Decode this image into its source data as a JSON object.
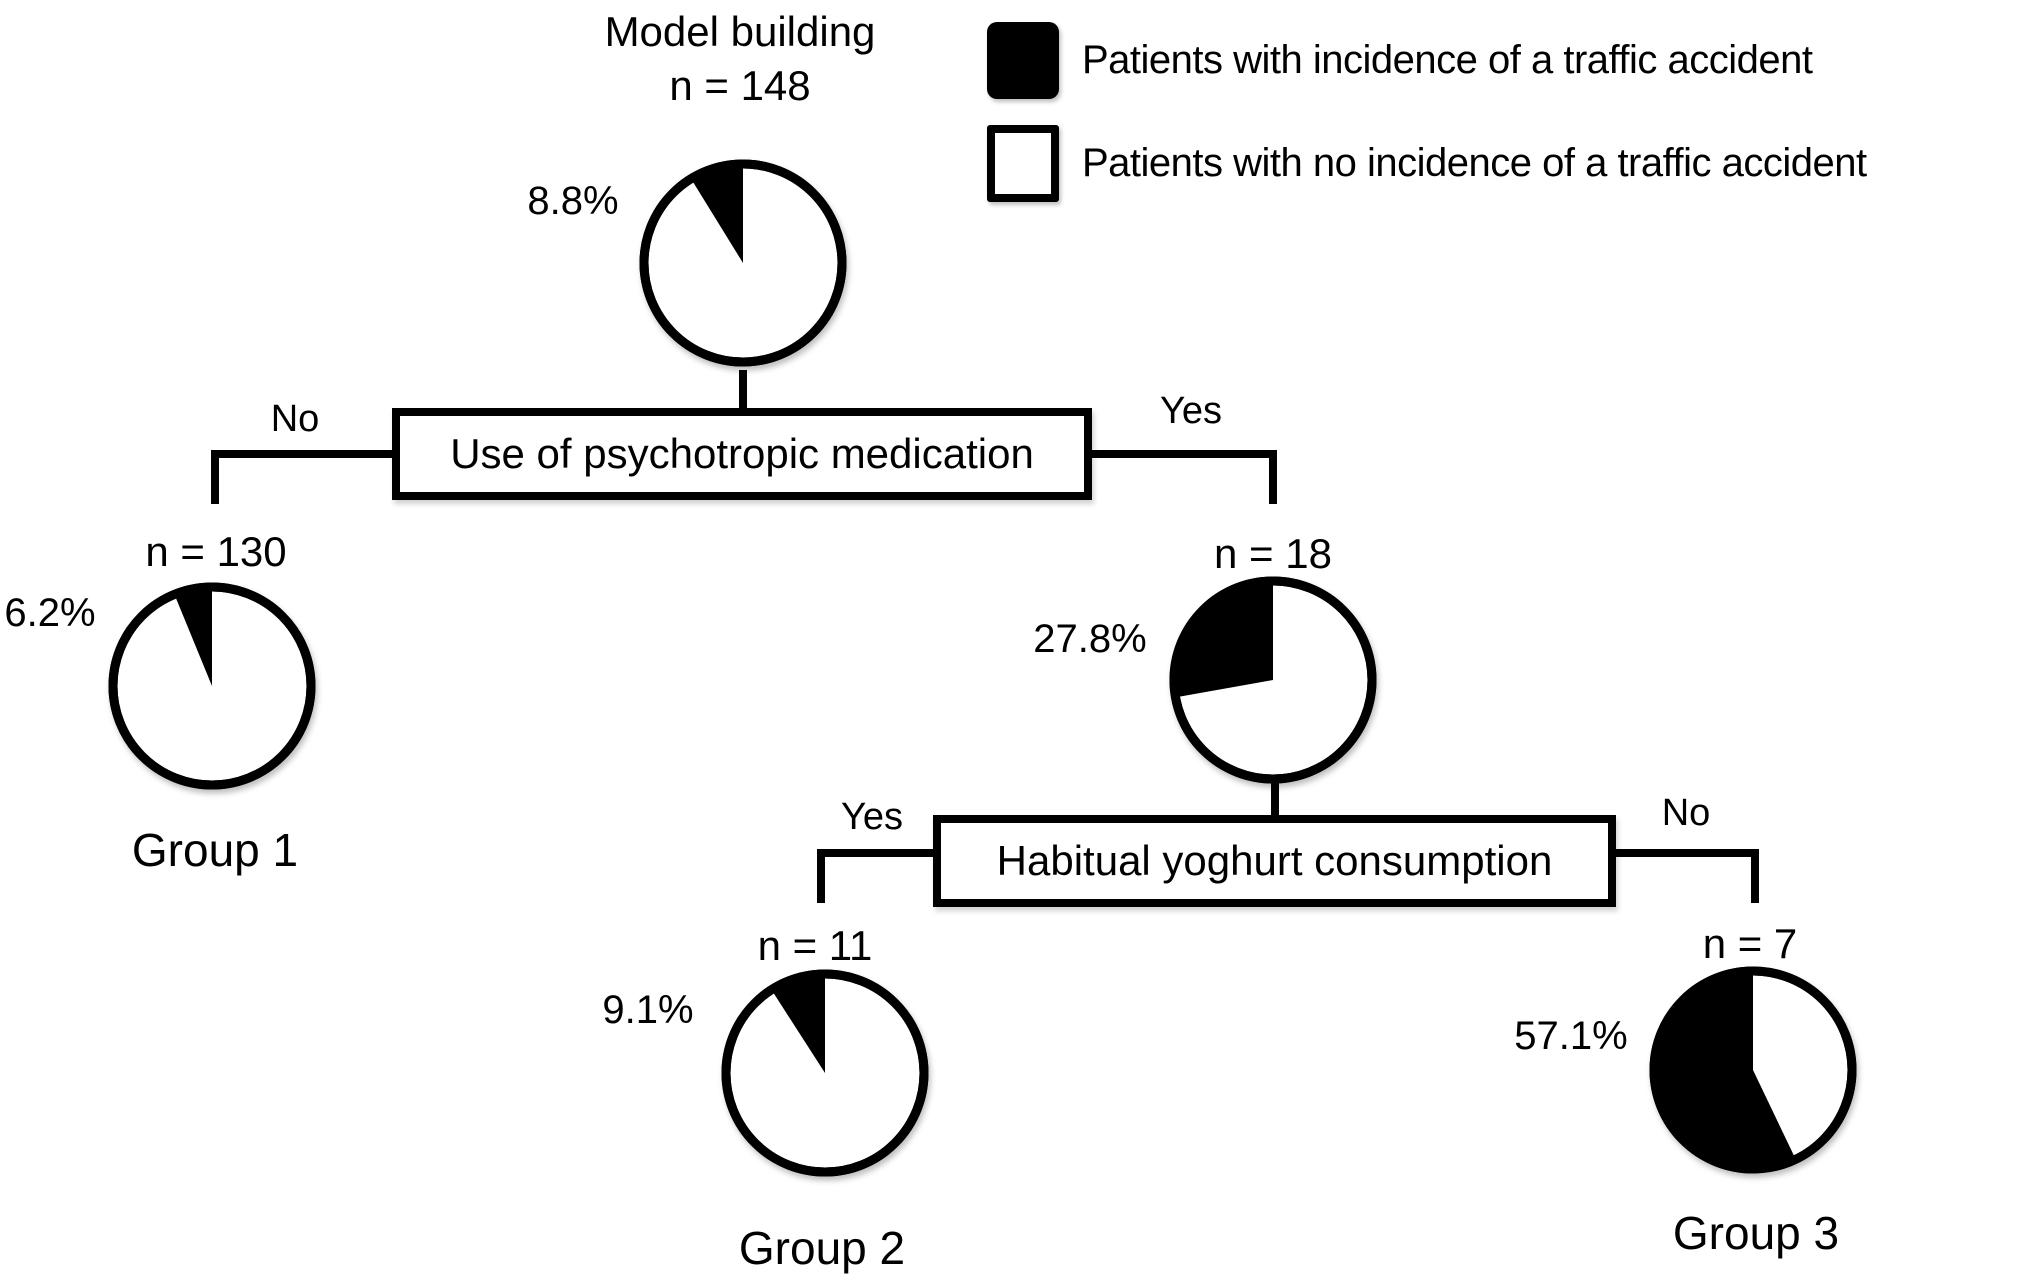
{
  "figure": {
    "root": {
      "title": "Model building",
      "n": "n = 148",
      "pct_label": "8.8%",
      "pct": 8.8
    },
    "legend": {
      "items": [
        {
          "swatch": "black",
          "label": "Patients with incidence of a traffic accident"
        },
        {
          "swatch": "white",
          "label": "Patients with no incidence of a traffic accident"
        }
      ]
    },
    "decisions": [
      {
        "label": "Use of psychotropic medication",
        "left": "No",
        "right": "Yes"
      },
      {
        "label": "Habitual yoghurt consumption",
        "left": "Yes",
        "right": "No"
      }
    ],
    "nodes": {
      "group1": {
        "n": "n = 130",
        "pct_label": "6.2%",
        "pct": 6.2,
        "label": "Group 1"
      },
      "psychotropic_yes": {
        "n": "n = 18",
        "pct_label": "27.8%",
        "pct": 27.8
      },
      "group2": {
        "n": "n = 11",
        "pct_label": "9.1%",
        "pct": 9.1,
        "label": "Group 2"
      },
      "group3": {
        "n": "n = 7",
        "pct_label": "57.1%",
        "pct": 57.1,
        "label": "Group 3"
      }
    },
    "colors": {
      "accident": "#000000",
      "no_accident": "#ffffff",
      "line": "#000000"
    }
  },
  "chart_data": [
    {
      "type": "pie",
      "title": "Model building",
      "n": 148,
      "labels": [
        "Patients with incidence of a traffic accident",
        "Patients with no incidence of a traffic accident"
      ],
      "values": [
        8.8,
        91.2
      ]
    },
    {
      "type": "pie",
      "title": "Group 1 (no psychotropic medication)",
      "n": 130,
      "labels": [
        "Patients with incidence of a traffic accident",
        "Patients with no incidence of a traffic accident"
      ],
      "values": [
        6.2,
        93.8
      ]
    },
    {
      "type": "pie",
      "title": "Psychotropic medication: yes",
      "n": 18,
      "labels": [
        "Patients with incidence of a traffic accident",
        "Patients with no incidence of a traffic accident"
      ],
      "values": [
        27.8,
        72.2
      ]
    },
    {
      "type": "pie",
      "title": "Group 2 (habitual yoghurt consumption: yes)",
      "n": 11,
      "labels": [
        "Patients with incidence of a traffic accident",
        "Patients with no incidence of a traffic accident"
      ],
      "values": [
        9.1,
        90.9
      ]
    },
    {
      "type": "pie",
      "title": "Group 3 (habitual yoghurt consumption: no)",
      "n": 7,
      "labels": [
        "Patients with incidence of a traffic accident",
        "Patients with no incidence of a traffic accident"
      ],
      "values": [
        57.1,
        42.9
      ]
    }
  ]
}
